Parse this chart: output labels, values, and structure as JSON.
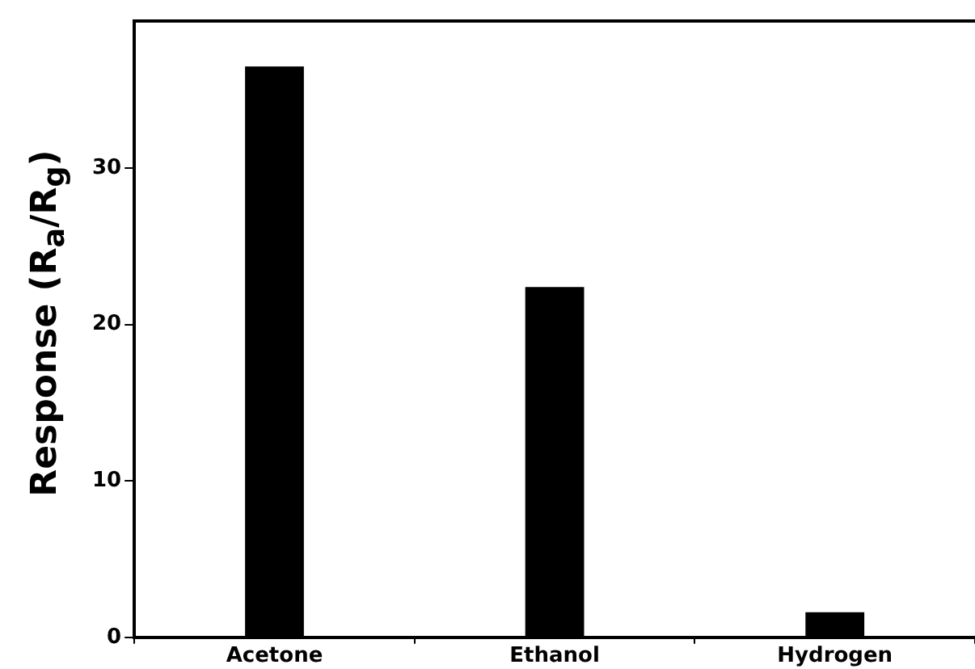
{
  "chart_data": {
    "type": "bar",
    "ylabel": "Response (R$_{a}$/R$_{g}$)",
    "categories": [
      "Acetone",
      "Ethanol",
      "Hydrogen"
    ],
    "values": [
      36.5,
      22.4,
      1.6
    ],
    "color": "#000000",
    "ylim": [
      0,
      39.4
    ],
    "yticks": [
      0,
      10,
      20,
      30
    ]
  }
}
